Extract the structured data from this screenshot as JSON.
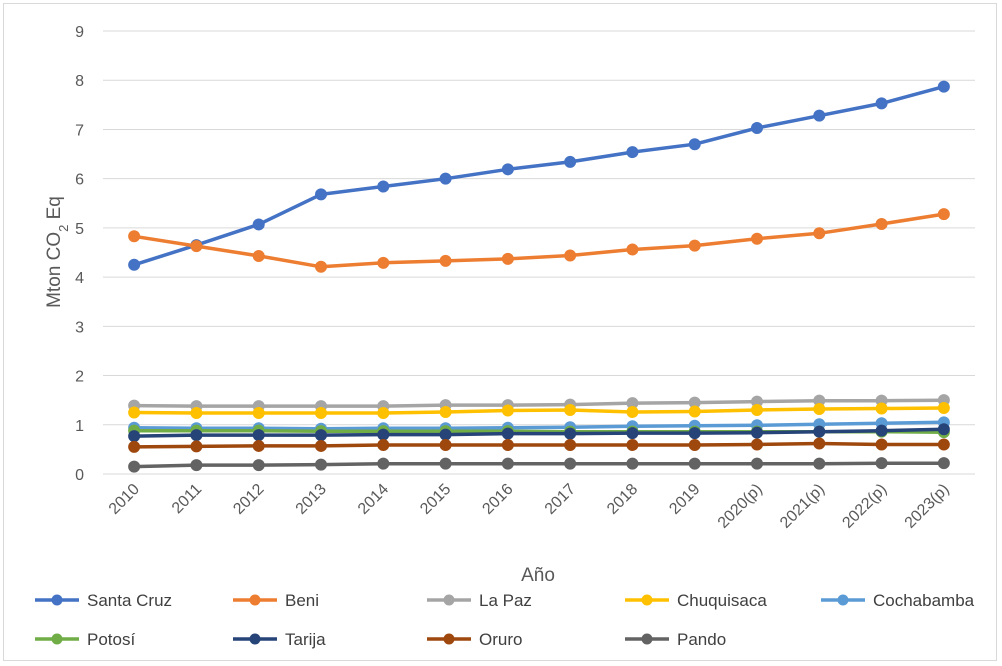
{
  "chart_data": {
    "type": "line",
    "title": "",
    "xlabel": "Año",
    "ylabel": "Mton CO2 Eq",
    "ylabel_parts": {
      "main": "Mton CO",
      "sub": "2",
      "tail": " Eq"
    },
    "ylim": [
      0,
      9
    ],
    "yticks": [
      "0",
      "1",
      "2",
      "3",
      "4",
      "5",
      "6",
      "7",
      "8",
      "9"
    ],
    "grid": true,
    "legend_position": "bottom",
    "categories": [
      "2010",
      "2011",
      "2012",
      "2013",
      "2014",
      "2015",
      "2016",
      "2017",
      "2018",
      "2019",
      "2020(p)",
      "2021(p)",
      "2022(p)",
      "2023(p)"
    ],
    "series": [
      {
        "name": "Santa Cruz",
        "color": "#4472c4",
        "values": [
          4.25,
          4.65,
          5.07,
          5.68,
          5.84,
          6.0,
          6.19,
          6.34,
          6.54,
          6.7,
          7.03,
          7.28,
          7.53,
          7.87
        ]
      },
      {
        "name": "Beni",
        "color": "#ed7d31",
        "values": [
          4.83,
          4.63,
          4.43,
          4.21,
          4.29,
          4.33,
          4.37,
          4.44,
          4.56,
          4.64,
          4.78,
          4.89,
          5.08,
          5.28
        ]
      },
      {
        "name": "La Paz",
        "color": "#a5a5a5",
        "values": [
          1.39,
          1.38,
          1.38,
          1.38,
          1.38,
          1.4,
          1.4,
          1.41,
          1.44,
          1.45,
          1.47,
          1.49,
          1.49,
          1.5
        ]
      },
      {
        "name": "Chuquisaca",
        "color": "#ffc000",
        "values": [
          1.25,
          1.24,
          1.24,
          1.24,
          1.24,
          1.26,
          1.29,
          1.3,
          1.26,
          1.27,
          1.3,
          1.32,
          1.33,
          1.34
        ]
      },
      {
        "name": "Cochabamba",
        "color": "#5b9bd5",
        "values": [
          0.94,
          0.93,
          0.93,
          0.92,
          0.93,
          0.93,
          0.94,
          0.95,
          0.97,
          0.98,
          0.99,
          1.01,
          1.03,
          1.05
        ]
      },
      {
        "name": "Potosí",
        "color": "#70ad47",
        "values": [
          0.88,
          0.88,
          0.88,
          0.87,
          0.87,
          0.87,
          0.87,
          0.86,
          0.86,
          0.86,
          0.86,
          0.86,
          0.86,
          0.85
        ]
      },
      {
        "name": "Tarija",
        "color": "#264478",
        "values": [
          0.77,
          0.79,
          0.79,
          0.79,
          0.8,
          0.8,
          0.82,
          0.82,
          0.83,
          0.83,
          0.84,
          0.86,
          0.88,
          0.91
        ]
      },
      {
        "name": "Oruro",
        "color": "#9e480e",
        "values": [
          0.55,
          0.56,
          0.57,
          0.57,
          0.59,
          0.59,
          0.59,
          0.59,
          0.59,
          0.59,
          0.6,
          0.62,
          0.6,
          0.6
        ]
      },
      {
        "name": "Pando",
        "color": "#636363",
        "values": [
          0.15,
          0.18,
          0.18,
          0.19,
          0.21,
          0.21,
          0.21,
          0.21,
          0.21,
          0.21,
          0.21,
          0.21,
          0.22,
          0.22
        ]
      }
    ]
  }
}
